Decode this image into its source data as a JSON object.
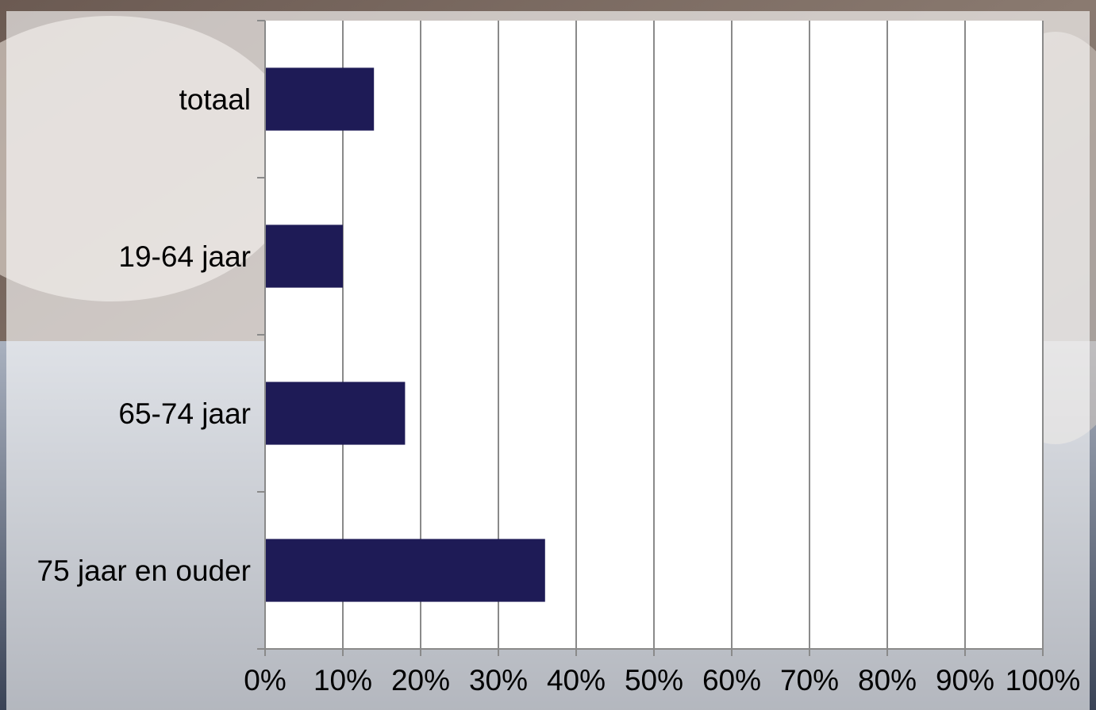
{
  "chart_data": {
    "type": "bar",
    "orientation": "horizontal",
    "categories": [
      "totaal",
      "19-64 jaar",
      "65-74 jaar",
      "75 jaar en ouder"
    ],
    "values": [
      14,
      10,
      18,
      36
    ],
    "value_unit": "%",
    "xlim": [
      0,
      100
    ],
    "x_ticks": [
      "0%",
      "10%",
      "20%",
      "30%",
      "40%",
      "50%",
      "60%",
      "70%",
      "80%",
      "90%",
      "100%"
    ],
    "grid": "vertical",
    "title": "",
    "xlabel": "",
    "ylabel": "",
    "legend": "none"
  },
  "colors": {
    "bar": "#1e1b56",
    "grid": "#8a8a8a",
    "plot_background": "#ffffff"
  }
}
